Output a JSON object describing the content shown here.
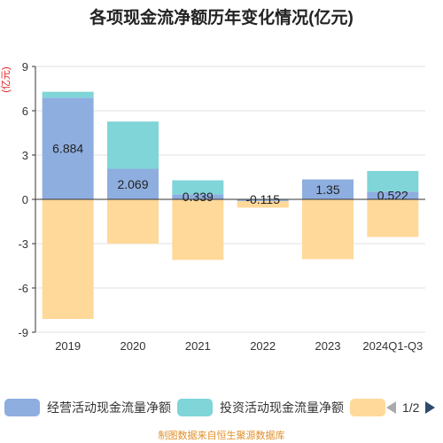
{
  "title": "各项现金流净额历年变化情况(亿元)",
  "unit_label": "(亿元)",
  "source_note": "制图数据来自恒生聚源数据库",
  "pager": {
    "text": "1/2"
  },
  "colors": {
    "operating": "#8eaee0",
    "investing": "#7fd5d8",
    "financing": "#ffd99a",
    "grid": "#e2e2e2",
    "axis": "#333333"
  },
  "chart_data": {
    "type": "bar",
    "stacked": true,
    "categories": [
      "2019",
      "2020",
      "2021",
      "2022",
      "2023",
      "2024Q1-Q3"
    ],
    "ylim": [
      -9,
      9
    ],
    "yticks": [
      9,
      6,
      3,
      0,
      -3,
      -6,
      -9
    ],
    "grid": true,
    "legend_position": "bottom",
    "series": [
      {
        "name": "经营活动现金流量净额",
        "values": [
          6.884,
          2.069,
          0.339,
          -0.115,
          1.35,
          0.522
        ],
        "labels": [
          "6.884",
          "2.069",
          "0.339",
          "-0.115",
          "1.35",
          "0.522"
        ]
      },
      {
        "name": "投资活动现金流量净额",
        "values": [
          0.4,
          3.2,
          0.95,
          0.0,
          0.0,
          1.4
        ]
      },
      {
        "name": "",
        "values": [
          -8.1,
          -3.0,
          -4.1,
          -0.45,
          -4.05,
          -2.55
        ]
      }
    ]
  }
}
